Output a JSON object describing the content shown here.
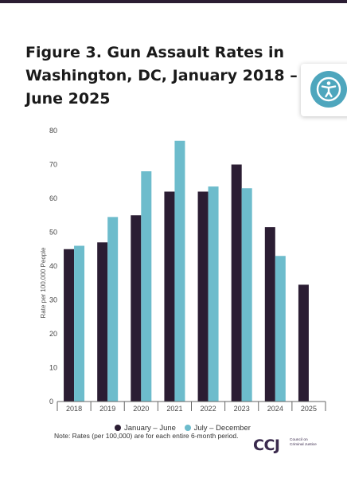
{
  "header": {
    "title": "Figure 3. Gun Assault Rates in Washington, DC, January 2018 – June 2025"
  },
  "accessibility": {
    "icon": "accessibility-icon",
    "color": "#4ea6bd"
  },
  "chart_data": {
    "type": "bar",
    "categories": [
      "2018",
      "2019",
      "2020",
      "2021",
      "2022",
      "2023",
      "2024",
      "2025"
    ],
    "series": [
      {
        "name": "January – June",
        "color": "#2b1d33",
        "values": [
          45,
          47,
          55,
          62,
          62,
          70,
          51.5,
          34.5
        ]
      },
      {
        "name": "July – December",
        "color": "#6dbccc",
        "values": [
          46,
          54.5,
          68,
          77,
          63.5,
          63,
          43,
          null
        ]
      }
    ],
    "ylabel": "Rate per 100,000 People",
    "xlabel": "",
    "ylim": [
      0,
      80
    ],
    "yticks": [
      0,
      10,
      20,
      30,
      40,
      50,
      60,
      70,
      80
    ],
    "grid": false,
    "legend": "bottom"
  },
  "footer": {
    "note": "Note: Rates (per 100,000) are for each entire 6-month period.",
    "logo_mark": "CCJ",
    "logo_text": "Council on Criminal Justice"
  }
}
